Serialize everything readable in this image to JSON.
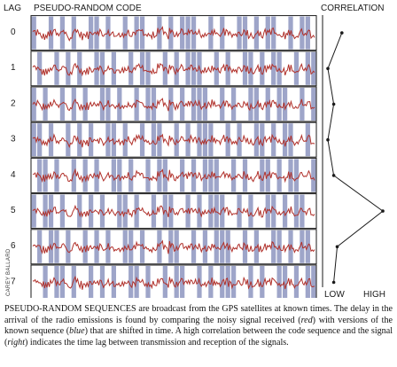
{
  "header": {
    "lag_label": "LAG",
    "code_label": "PSEUDO-RANDOM CODE",
    "correlation_label": "CORRELATION"
  },
  "lags": [
    "0",
    "1",
    "2",
    "3",
    "4",
    "5",
    "6",
    "7"
  ],
  "correlation": {
    "values": [
      0.3,
      0.06,
      0.16,
      0.06,
      0.16,
      1.0,
      0.22,
      0.16
    ],
    "low_label": "LOW",
    "high_label": "HIGH"
  },
  "credit": "CAREY BALLARD",
  "colors": {
    "signal": "#b0302a",
    "code": "#9ea5c9",
    "frame": "#1a1a1a"
  },
  "code_sequence": [
    1,
    0,
    0,
    1,
    0,
    1,
    0,
    1,
    0,
    0,
    1,
    1,
    0,
    1,
    0,
    0,
    1,
    0,
    1,
    1,
    0,
    0,
    1,
    0,
    1,
    0,
    1,
    1,
    1,
    0,
    0,
    1,
    0,
    1,
    0,
    0,
    1,
    1,
    0,
    1,
    0,
    1,
    1,
    0,
    0,
    1,
    0,
    1,
    1,
    0
  ],
  "caption": {
    "lead": "PSEUDO-RANDOM SEQUENCES",
    "t1": " are broadcast from the GPS satellites at known times. The delay in the arrival of the radio emissions is found by comparing the noisy signal received (",
    "red": "red",
    "t2": ") with versions of the known sequence (",
    "blue": "blue",
    "t3": ") that are shifted in time. A high correlation between the code sequence and the signal (",
    "right": "right",
    "t4": ") indicates the time lag between transmission and reception of the signals."
  }
}
